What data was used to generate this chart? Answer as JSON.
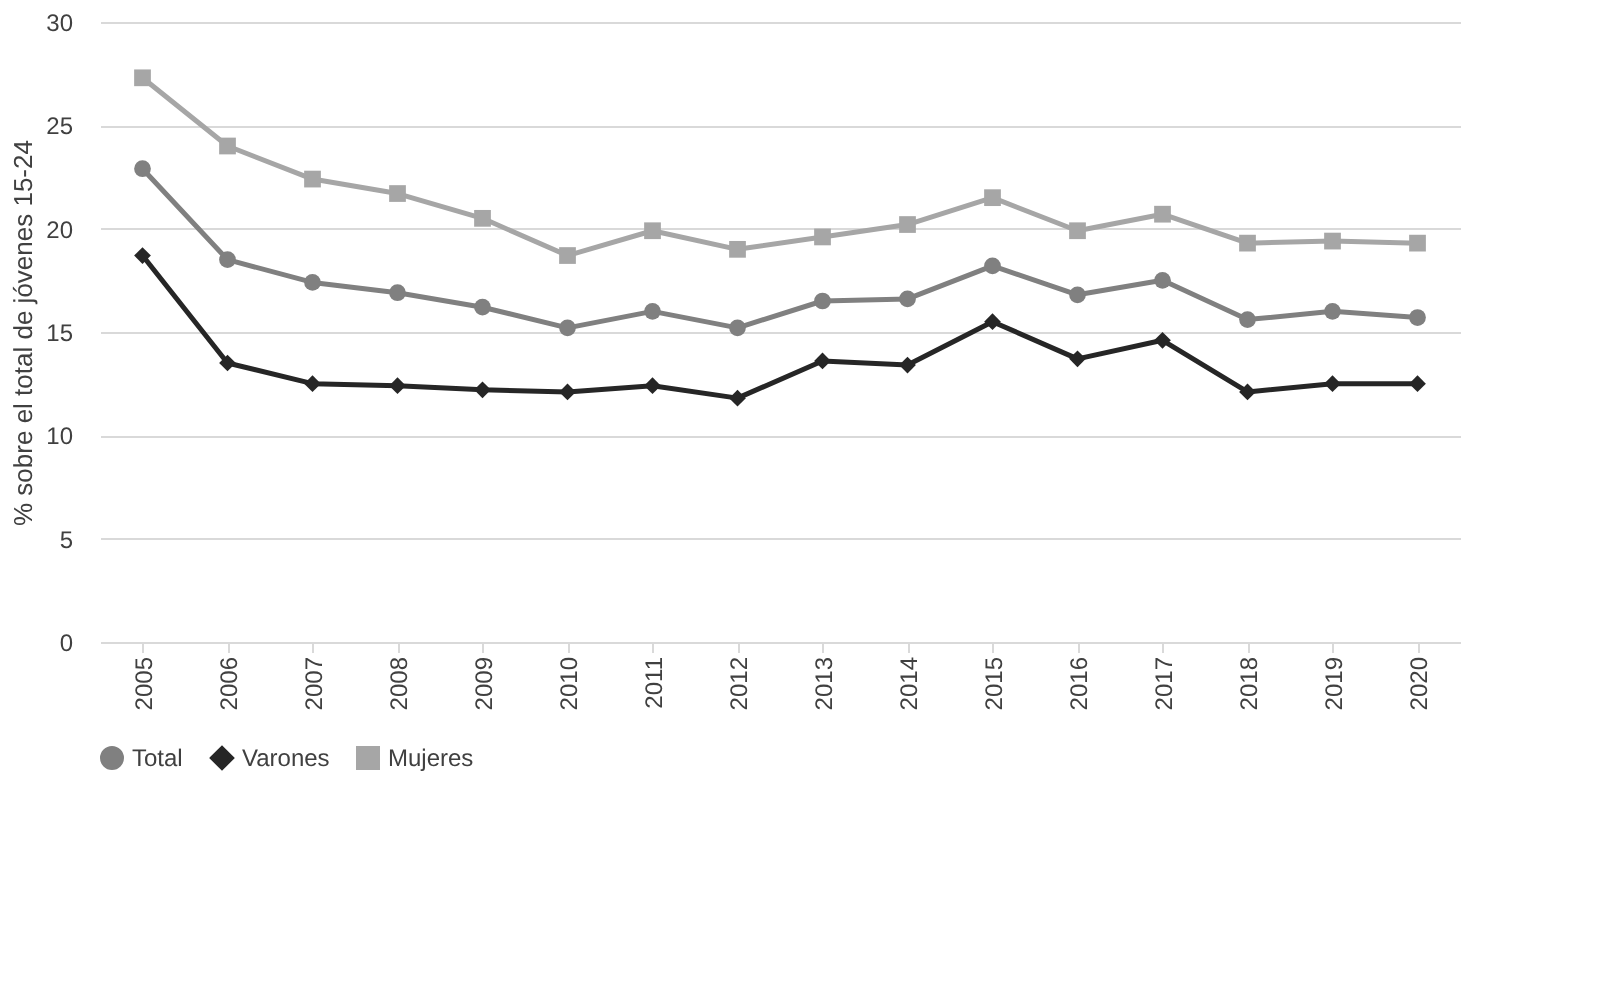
{
  "chart_data": {
    "type": "line",
    "ylabel": "% sobre el total de jóvenes 15-24",
    "categories": [
      "2005",
      "2006",
      "2007",
      "2008",
      "2009",
      "2010",
      "2011",
      "2012",
      "2013",
      "2014",
      "2015",
      "2016",
      "2017",
      "2018",
      "2019",
      "2020"
    ],
    "series": [
      {
        "name": "Total",
        "color": "#808080",
        "marker": "circle",
        "values": [
          22.9,
          18.5,
          17.4,
          16.9,
          16.2,
          15.2,
          16.0,
          15.2,
          16.5,
          16.6,
          18.2,
          16.8,
          17.5,
          15.6,
          16.0,
          15.7
        ]
      },
      {
        "name": "Varones",
        "color": "#262626",
        "marker": "diamond",
        "values": [
          18.7,
          13.5,
          12.5,
          12.4,
          12.2,
          12.1,
          12.4,
          11.8,
          13.6,
          13.4,
          15.5,
          13.7,
          14.6,
          12.1,
          12.5,
          12.5
        ]
      },
      {
        "name": "Mujeres",
        "color": "#a6a6a6",
        "marker": "square",
        "values": [
          27.3,
          24.0,
          22.4,
          21.7,
          20.5,
          18.7,
          19.9,
          19.0,
          19.6,
          20.2,
          21.5,
          19.9,
          20.7,
          19.3,
          19.4,
          19.3
        ]
      }
    ],
    "ylim": [
      0,
      30
    ],
    "yticks": [
      0,
      5,
      10,
      15,
      20,
      25,
      30
    ],
    "grid": "y",
    "legend": "bottom",
    "line_style": "solid"
  }
}
